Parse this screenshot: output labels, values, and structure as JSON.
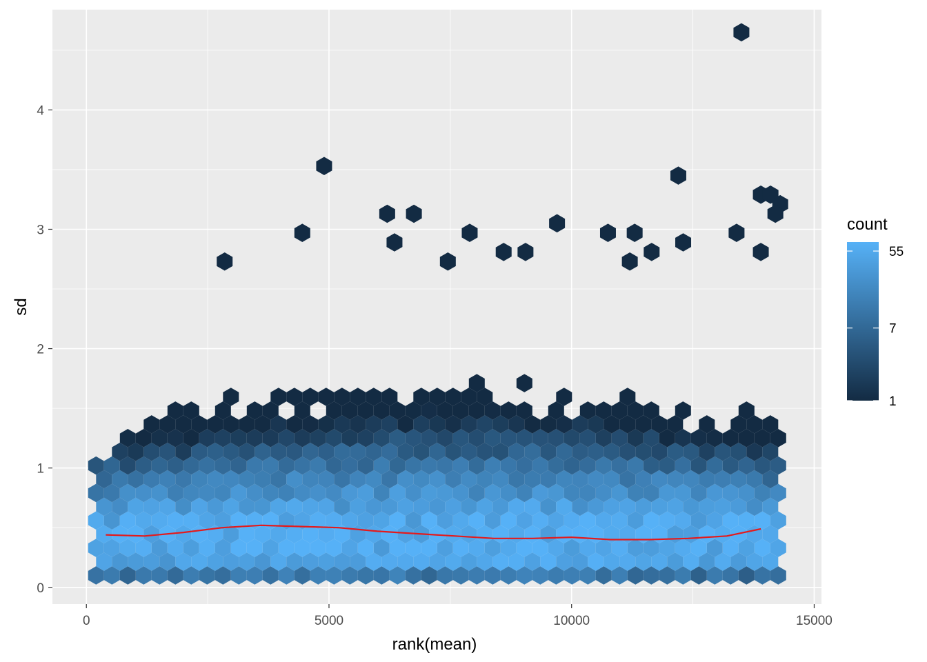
{
  "chart_data": {
    "type": "hexbin",
    "xlabel": "rank(mean)",
    "ylabel": "sd",
    "xlim": [
      -700,
      15150
    ],
    "ylim": [
      -0.14,
      4.84
    ],
    "x_ticks": [
      0,
      5000,
      10000,
      15000
    ],
    "x_tick_labels": [
      "0",
      "5000",
      "10000",
      "15000"
    ],
    "y_ticks": [
      0,
      1,
      2,
      3,
      4
    ],
    "y_tick_labels": [
      "0",
      "1",
      "2",
      "3",
      "4"
    ],
    "grid": true,
    "legend": {
      "title": "count",
      "placement": "right",
      "scale": "log",
      "range": [
        1,
        70
      ],
      "breaks": [
        55,
        7,
        1
      ],
      "break_labels": [
        "55",
        "7",
        "1"
      ],
      "low_color": "#132B43",
      "high_color": "#56B1F7"
    },
    "colors": {
      "panel": "#EBEBEB",
      "grid": "#FFFFFF",
      "smooth_line": "#E41A1C"
    },
    "outlier_points": [
      {
        "x": 13500,
        "y": 4.65
      },
      {
        "x": 4900,
        "y": 3.53
      },
      {
        "x": 12200,
        "y": 3.45
      },
      {
        "x": 13900,
        "y": 3.29
      },
      {
        "x": 14100,
        "y": 3.29
      },
      {
        "x": 14300,
        "y": 3.21
      },
      {
        "x": 14200,
        "y": 3.13
      },
      {
        "x": 6200,
        "y": 3.13
      },
      {
        "x": 6750,
        "y": 3.13
      },
      {
        "x": 9700,
        "y": 3.05
      },
      {
        "x": 4450,
        "y": 2.97
      },
      {
        "x": 7900,
        "y": 2.97
      },
      {
        "x": 10750,
        "y": 2.97
      },
      {
        "x": 11300,
        "y": 2.97
      },
      {
        "x": 13400,
        "y": 2.97
      },
      {
        "x": 6350,
        "y": 2.89
      },
      {
        "x": 12300,
        "y": 2.89
      },
      {
        "x": 2850,
        "y": 2.73
      },
      {
        "x": 7450,
        "y": 2.73
      },
      {
        "x": 8600,
        "y": 2.81
      },
      {
        "x": 9050,
        "y": 2.81
      },
      {
        "x": 11650,
        "y": 2.81
      },
      {
        "x": 13900,
        "y": 2.81
      },
      {
        "x": 11200,
        "y": 2.73
      }
    ],
    "density_description_for_rendering": {
      "x_range": [
        200,
        14400
      ],
      "band_center_sd": 0.42
    },
    "smooth_line": {
      "x": [
        400,
        1200,
        2000,
        2800,
        3600,
        4400,
        5200,
        6000,
        6800,
        7600,
        8400,
        9200,
        10000,
        10800,
        11600,
        12400,
        13200,
        13900
      ],
      "y": [
        0.44,
        0.43,
        0.46,
        0.5,
        0.52,
        0.51,
        0.5,
        0.47,
        0.45,
        0.43,
        0.41,
        0.41,
        0.42,
        0.4,
        0.4,
        0.41,
        0.43,
        0.49
      ]
    }
  }
}
